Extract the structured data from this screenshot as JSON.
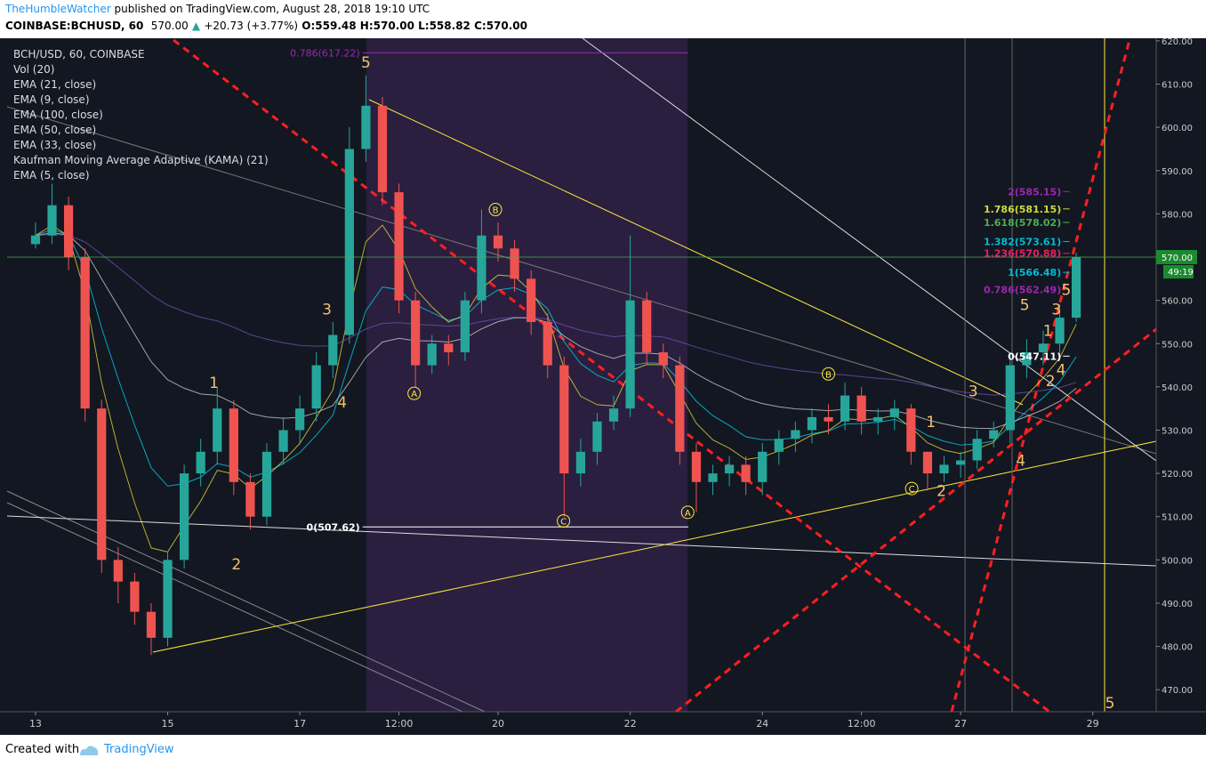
{
  "header": {
    "author": "TheHumbleWatcher",
    "published": "published on TradingView.com, August 28, 2018 19:10 UTC",
    "symbol": "COINBASE:BCHUSD, 60",
    "last": "570.00",
    "change": "+20.73 (+3.77%)",
    "open": "O:559.48",
    "high": "H:570.00",
    "low": "L:558.82",
    "close": "C:570.00"
  },
  "footer": {
    "created": "Created with",
    "brand": "TradingView"
  },
  "chart_data": {
    "type": "candlestick",
    "indicators": [
      "BCH/USD, 60, COINBASE",
      "Vol (20)",
      "EMA (21, close)",
      "EMA (9, close)",
      "EMA (100, close)",
      "EMA (50, close)",
      "EMA (33, close)",
      "Kaufman Moving Average Adaptive (KAMA) (21)",
      "EMA (5, close)"
    ],
    "x": [
      0,
      0.25,
      0.5,
      0.75,
      1,
      1.25,
      1.5,
      1.75,
      2,
      2.25,
      2.5,
      2.75,
      3,
      3.25,
      3.5,
      3.75,
      4,
      4.25,
      4.5,
      4.75,
      5,
      5.25,
      5.5,
      5.75,
      6,
      6.25,
      6.5,
      6.75,
      7,
      7.25,
      7.5,
      7.75,
      8,
      8.25,
      8.5,
      8.75,
      9,
      9.25,
      9.5,
      9.75,
      10,
      10.25,
      10.5,
      10.75,
      11,
      11.25,
      11.5,
      11.75,
      12,
      12.25,
      12.5,
      12.75,
      13,
      13.25,
      13.5,
      13.75,
      14,
      14.25,
      14.5,
      14.75,
      15,
      15.25,
      15.5,
      15.75
    ],
    "open": [
      573,
      575,
      582,
      570,
      535,
      500,
      495,
      488,
      482,
      500,
      520,
      525,
      535,
      518,
      510,
      525,
      530,
      535,
      545,
      552,
      595,
      605,
      585,
      560,
      545,
      550,
      548,
      560,
      575,
      572,
      565,
      555,
      545,
      520,
      525,
      532,
      535,
      560,
      548,
      545,
      525,
      518,
      520,
      522,
      518,
      525,
      528,
      530,
      533,
      532,
      538,
      532,
      533,
      535,
      525,
      520,
      522,
      523,
      528,
      530,
      545,
      548,
      550,
      556
    ],
    "high": [
      578,
      587,
      584,
      572,
      537,
      503,
      497,
      490,
      502,
      522,
      528,
      540,
      537,
      520,
      527,
      533,
      538,
      548,
      555,
      600,
      612,
      607,
      587,
      562,
      552,
      552,
      562,
      581,
      578,
      574,
      567,
      557,
      547,
      528,
      534,
      538,
      575,
      562,
      550,
      547,
      527,
      522,
      524,
      524,
      527,
      530,
      532,
      535,
      536,
      541,
      540,
      535,
      537,
      536,
      525,
      524,
      525,
      530,
      532,
      548,
      551,
      553,
      559,
      571
    ],
    "low": [
      572,
      573,
      567,
      532,
      497,
      490,
      485,
      478,
      480,
      498,
      517,
      522,
      515,
      507,
      508,
      522,
      527,
      532,
      542,
      550,
      592,
      582,
      557,
      540,
      543,
      545,
      546,
      557,
      569,
      562,
      552,
      542,
      510,
      517,
      522,
      530,
      533,
      545,
      542,
      522,
      511,
      515,
      517,
      515,
      515,
      522,
      525,
      527,
      529,
      530,
      529,
      529,
      530,
      522,
      516,
      518,
      519,
      521,
      526,
      527,
      542,
      545,
      547,
      555
    ],
    "close": [
      575,
      582,
      570,
      535,
      500,
      495,
      488,
      482,
      500,
      520,
      525,
      535,
      518,
      510,
      525,
      530,
      535,
      545,
      552,
      595,
      605,
      585,
      560,
      545,
      550,
      548,
      560,
      575,
      572,
      565,
      555,
      545,
      520,
      525,
      532,
      535,
      560,
      548,
      545,
      525,
      518,
      520,
      522,
      518,
      525,
      528,
      530,
      533,
      532,
      538,
      532,
      533,
      535,
      525,
      520,
      522,
      523,
      528,
      530,
      545,
      548,
      550,
      556,
      570
    ],
    "up_color": "#26a69a",
    "down_color": "#ef5350",
    "xlim": [
      -0.43,
      16.96
    ],
    "xticks": [
      {
        "value": 0,
        "label": "13"
      },
      {
        "value": 2,
        "label": "15"
      },
      {
        "value": 4,
        "label": "17"
      },
      {
        "value": 5.5,
        "label": "12:00"
      },
      {
        "value": 7,
        "label": "20"
      },
      {
        "value": 9,
        "label": "22"
      },
      {
        "value": 11,
        "label": "24"
      },
      {
        "value": 12.5,
        "label": "12:00"
      },
      {
        "value": 14,
        "label": "27"
      },
      {
        "value": 16,
        "label": "29"
      }
    ],
    "ylim": [
      464.9,
      620.6
    ],
    "yticks": [
      {
        "value": 470,
        "label": "470.00"
      },
      {
        "value": 480,
        "label": "480.00"
      },
      {
        "value": 490,
        "label": "490.00"
      },
      {
        "value": 500,
        "label": "500.00"
      },
      {
        "value": 510,
        "label": "510.00"
      },
      {
        "value": 520,
        "label": "520.00"
      },
      {
        "value": 530,
        "label": "530.00"
      },
      {
        "value": 540,
        "label": "540.00"
      },
      {
        "value": 550,
        "label": "550.00"
      },
      {
        "value": 560,
        "label": "560.00"
      },
      {
        "value": 570,
        "label": "570.00"
      },
      {
        "value": 580,
        "label": "580.00"
      },
      {
        "value": 590,
        "label": "590.00"
      },
      {
        "value": 600,
        "label": "600.00"
      },
      {
        "value": 610,
        "label": "610.00"
      },
      {
        "value": 620,
        "label": "620.00"
      }
    ],
    "grid": true,
    "last_price": {
      "value": 570,
      "label": "570.00",
      "timer": "49:19"
    },
    "waves": [
      {
        "text": "5",
        "x": 5.0,
        "y": 615
      },
      {
        "text": "3",
        "x": 4.41,
        "y": 558
      },
      {
        "text": "4",
        "x": 4.64,
        "y": 536.5
      },
      {
        "text": "1",
        "x": 2.7,
        "y": 541
      },
      {
        "text": "2",
        "x": 3.04,
        "y": 499
      },
      {
        "text": "A",
        "x": 5.73,
        "y": 538.5,
        "circled": true
      },
      {
        "text": "B",
        "x": 6.96,
        "y": 581,
        "circled": true
      },
      {
        "text": "C",
        "x": 7.99,
        "y": 509,
        "circled": true
      },
      {
        "text": "A",
        "x": 9.87,
        "y": 511,
        "circled": true
      },
      {
        "text": "B",
        "x": 12.0,
        "y": 543,
        "circled": true
      },
      {
        "text": "C",
        "x": 13.26,
        "y": 516.5,
        "circled": true
      },
      {
        "text": "1",
        "x": 13.55,
        "y": 532
      },
      {
        "text": "2",
        "x": 13.71,
        "y": 516
      },
      {
        "text": "3",
        "x": 14.19,
        "y": 539
      },
      {
        "text": "4",
        "x": 14.91,
        "y": 523
      },
      {
        "text": "5",
        "x": 14.97,
        "y": 559
      },
      {
        "text": "1",
        "x": 15.32,
        "y": 553
      },
      {
        "text": "2",
        "x": 15.36,
        "y": 541.4
      },
      {
        "text": "3",
        "x": 15.45,
        "y": 558
      },
      {
        "text": "4",
        "x": 15.52,
        "y": 544
      },
      {
        "text": "5",
        "x": 15.6,
        "y": 562.5
      },
      {
        "text": "5",
        "x": 16.26,
        "y": 467
      }
    ],
    "fib_left": [
      {
        "label": "0.786(617.22)",
        "value": 617.22,
        "color": "#9c27b0"
      },
      {
        "label": "0(507.62)",
        "value": 507.62,
        "color": "#ffffff"
      }
    ],
    "fib_right": [
      {
        "label": "2(585.15)",
        "value": 585.15,
        "color": "#9c27b0"
      },
      {
        "label": "1.786(581.15)",
        "value": 581.15,
        "color": "#cddc39"
      },
      {
        "label": "1.618(578.02)",
        "value": 578.02,
        "color": "#4caf50"
      },
      {
        "label": "1.382(573.61)",
        "value": 573.61,
        "color": "#00bcd4"
      },
      {
        "label": "1.236(570.88)",
        "value": 570.88,
        "color": "#e91e63"
      },
      {
        "label": "1(566.48)",
        "value": 566.48,
        "color": "#00bcd4"
      },
      {
        "label": "0.786(562.49)",
        "value": 562.49,
        "color": "#9c27b0"
      },
      {
        "label": "0(547.11)",
        "value": 547.11,
        "color": "#ffffff"
      }
    ]
  }
}
